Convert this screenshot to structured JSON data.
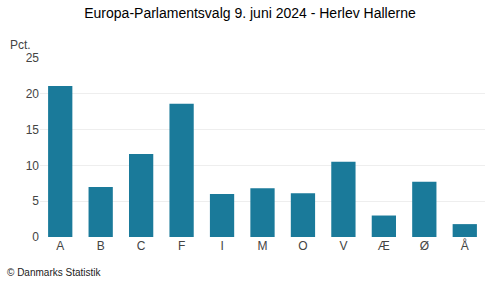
{
  "chart_data": {
    "type": "bar",
    "title": "Europa-Parlamentsvalg 9. juni 2024 - Herlev Hallerne",
    "categories": [
      "A",
      "B",
      "C",
      "F",
      "I",
      "M",
      "O",
      "V",
      "Æ",
      "Ø",
      "Å"
    ],
    "values": [
      21.1,
      7.0,
      11.6,
      18.6,
      6.0,
      6.8,
      6.1,
      10.5,
      3.0,
      7.7,
      1.8
    ],
    "color": "#1a7a9a",
    "ylabel": "Pct.",
    "annotations": [
      "© Danmarks Statistik"
    ],
    "ylim": [
      0,
      25
    ],
    "yticks": [
      0,
      5,
      10,
      15,
      20,
      25
    ],
    "grid": true
  }
}
